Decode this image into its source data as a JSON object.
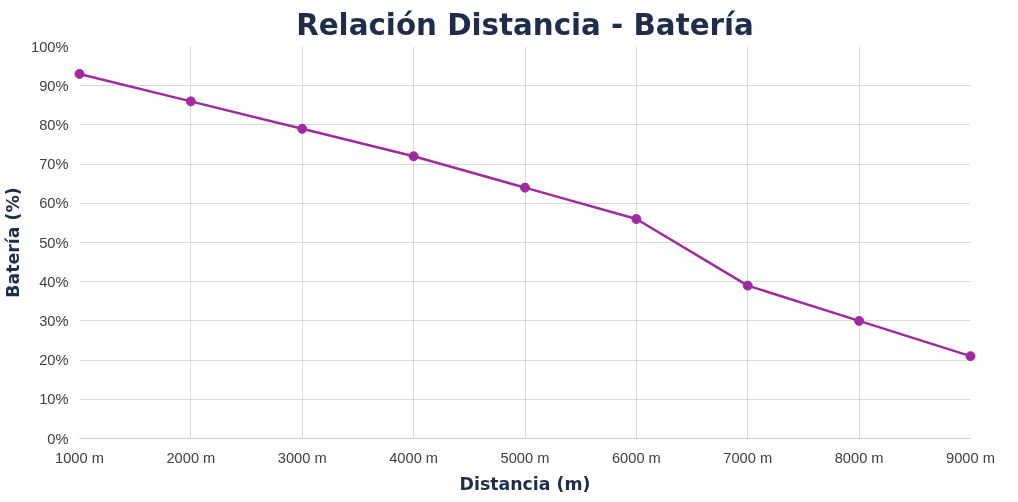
{
  "chart_data": {
    "type": "line",
    "title": "Relación Distancia - Batería",
    "xlabel": "Distancia (m)",
    "ylabel": "Batería (%)",
    "categories": [
      "1000 m",
      "2000 m",
      "3000 m",
      "4000 m",
      "5000 m",
      "6000 m",
      "7000 m",
      "8000 m",
      "9000 m"
    ],
    "series": [
      {
        "color": "#a02b9e",
        "values": [
          93,
          86,
          79,
          72,
          64,
          56,
          39,
          30,
          21
        ]
      }
    ],
    "ylim": [
      0,
      100
    ],
    "yticks": [
      {
        "value": 0,
        "label": "0%"
      },
      {
        "value": 10,
        "label": "10%"
      },
      {
        "value": 20,
        "label": "20%"
      },
      {
        "value": 30,
        "label": "30%"
      },
      {
        "value": 40,
        "label": "40%"
      },
      {
        "value": 50,
        "label": "50%"
      },
      {
        "value": 60,
        "label": "60%"
      },
      {
        "value": 70,
        "label": "70%"
      },
      {
        "value": 80,
        "label": "80%"
      },
      {
        "value": 90,
        "label": "90%"
      },
      {
        "value": 100,
        "label": "100%"
      }
    ],
    "grid": true,
    "marker": "circle",
    "line_style": "solid"
  }
}
